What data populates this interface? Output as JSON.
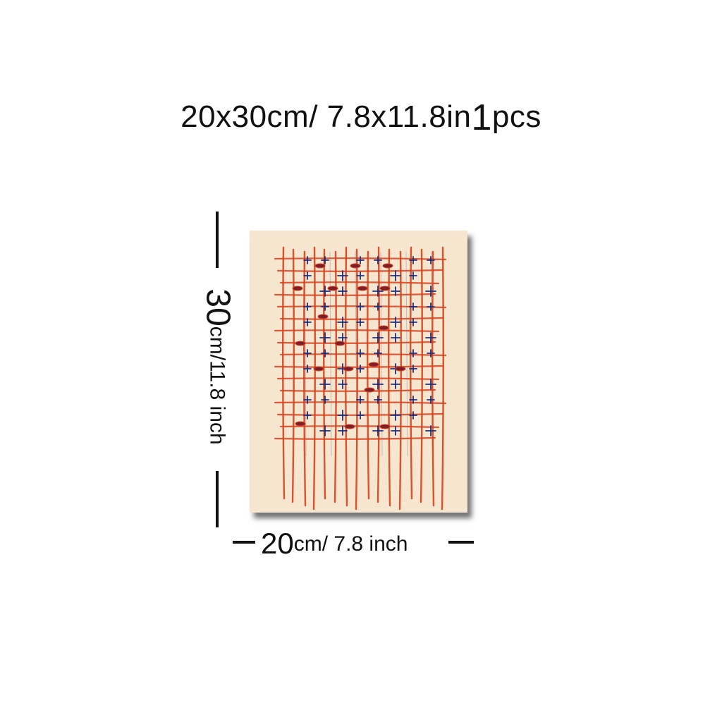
{
  "title": {
    "size_text": "20x30cm/ 7.8x11.8in",
    "quantity": "1",
    "unit": "pcs"
  },
  "dimensions": {
    "height": {
      "value": "30",
      "unit_text": "cm/11.8 inch"
    },
    "width": {
      "value": "20",
      "unit_text": "cm/ 7.8 inch"
    }
  },
  "artwork": {
    "subject": "abstract grid painting of red-orange lines with blue cross marks",
    "background_color": "#f6e6cf",
    "line_color": "#d8401c",
    "mark_color": "#1d2f7a"
  }
}
